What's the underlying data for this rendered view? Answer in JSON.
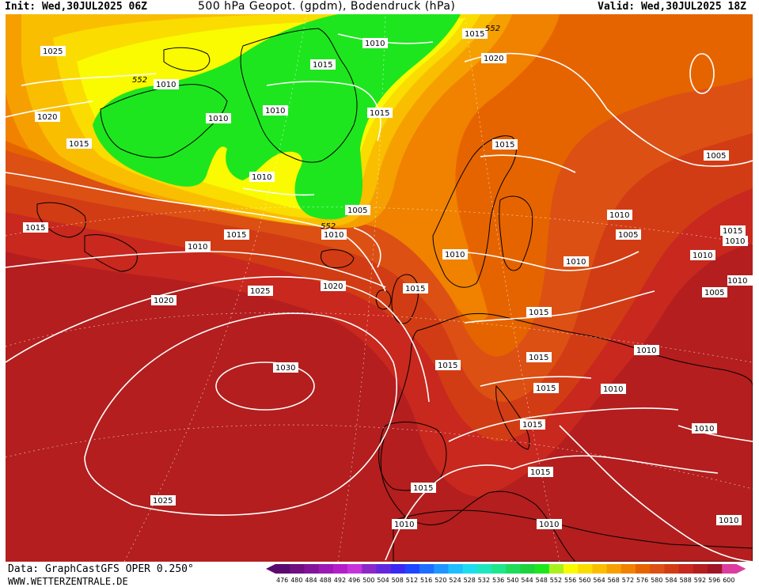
{
  "header": {
    "init": "Init: Wed,30JUL2025 06Z",
    "title": "500 hPa Geopot. (gpdm), Bodendruck (hPa)",
    "valid": "Valid: Wed,30JUL2025 18Z"
  },
  "footer": {
    "data_source": "Data: GraphCastGFS OPER 0.250°",
    "website": "WWW.WETTERZENTRALE.DE"
  },
  "colors": {
    "land_outline": "#000000",
    "isobar": "#ffffff",
    "label_bg": "#ffffff"
  },
  "legend": {
    "values": [
      "476",
      "480",
      "484",
      "488",
      "492",
      "496",
      "500",
      "504",
      "508",
      "512",
      "516",
      "520",
      "524",
      "528",
      "532",
      "536",
      "540",
      "544",
      "548",
      "552",
      "556",
      "560",
      "564",
      "568",
      "572",
      "576",
      "580",
      "584",
      "588",
      "592",
      "596",
      "600"
    ],
    "colors": [
      "#5a0a6e",
      "#6e0f82",
      "#82149a",
      "#9b19b4",
      "#b41ec8",
      "#c832dc",
      "#8c28c8",
      "#6428dc",
      "#3c28f0",
      "#1e46ff",
      "#1e6eff",
      "#1e96ff",
      "#1ebeff",
      "#1edcf0",
      "#1ee6be",
      "#1ee68c",
      "#1edc5a",
      "#1ed23c",
      "#1ee61e",
      "#aaf01e",
      "#fafa00",
      "#fadc00",
      "#fabe00",
      "#f5a000",
      "#f08200",
      "#e66400",
      "#dc5014",
      "#d23c14",
      "#c8281e",
      "#b41e1e",
      "#a01428",
      "#dc3ca0"
    ]
  },
  "isobar_labels": [
    {
      "text": "1025"
    },
    {
      "text": "1020"
    },
    {
      "text": "1015"
    },
    {
      "text": "1015"
    },
    {
      "text": "1010"
    },
    {
      "text": "1020"
    },
    {
      "text": "1025"
    },
    {
      "text": "1030"
    },
    {
      "text": "1025"
    },
    {
      "text": "1010"
    },
    {
      "text": "1010"
    },
    {
      "text": "1010"
    },
    {
      "text": "1015"
    },
    {
      "text": "1010"
    },
    {
      "text": "1010"
    },
    {
      "text": "1005"
    },
    {
      "text": "1010"
    },
    {
      "text": "1015"
    },
    {
      "text": "1015"
    },
    {
      "text": "1010"
    },
    {
      "text": "1015"
    },
    {
      "text": "1020"
    },
    {
      "text": "1015"
    },
    {
      "text": "1015"
    },
    {
      "text": "1010"
    },
    {
      "text": "1020"
    },
    {
      "text": "1015"
    },
    {
      "text": "1010"
    },
    {
      "text": "1005"
    },
    {
      "text": "1010"
    },
    {
      "text": "1015"
    },
    {
      "text": "1015"
    },
    {
      "text": "1015"
    },
    {
      "text": "1015"
    },
    {
      "text": "1015"
    },
    {
      "text": "1010"
    },
    {
      "text": "1010"
    },
    {
      "text": "1015"
    },
    {
      "text": "1010"
    },
    {
      "text": "1005"
    },
    {
      "text": "1010"
    },
    {
      "text": "1010"
    },
    {
      "text": "1010"
    },
    {
      "text": "1010"
    },
    {
      "text": "1005"
    },
    {
      "text": "1015"
    },
    {
      "text": "1010"
    },
    {
      "text": "1010"
    },
    {
      "text": "1010"
    }
  ],
  "height_labels": [
    {
      "text": "552"
    },
    {
      "text": "552"
    },
    {
      "text": "552"
    }
  ]
}
